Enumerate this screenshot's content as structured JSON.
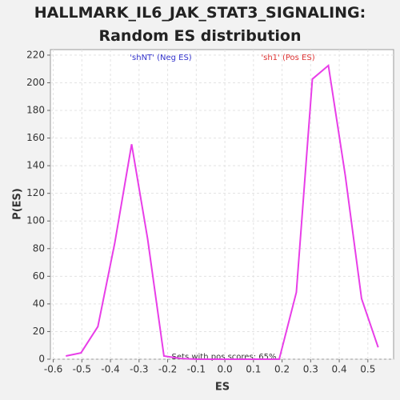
{
  "chart_data": {
    "type": "line",
    "title": "HALLMARK_IL6_JAK_STAT3_SIGNALING: Random ES distribution",
    "xlabel": "ES",
    "ylabel": "P(ES)",
    "annotations": {
      "neg": "'shNT' (Neg ES)",
      "pos": "'sh1' (Pos ES)",
      "note": "Sets with pos scores: 65%"
    },
    "x": [
      -0.556,
      -0.503,
      -0.444,
      -0.385,
      -0.326,
      -0.27,
      -0.213,
      -0.155,
      -0.097,
      -0.04,
      0.018,
      0.076,
      0.134,
      0.19,
      0.25,
      0.306,
      0.362,
      0.421,
      0.478,
      0.536
    ],
    "series": [
      {
        "name": "P(ES)",
        "color": "#e83ee8",
        "values": [
          2.3,
          4.6,
          23.6,
          84,
          155.5,
          87,
          2.3,
          0.5,
          0,
          0,
          0,
          0,
          0,
          0,
          48.4,
          202.7,
          212.5,
          133,
          43.8,
          8.6
        ]
      }
    ],
    "xlim": [
      -0.61,
      0.59
    ],
    "ylim": [
      0,
      224
    ],
    "xticks": [
      -0.6,
      -0.5,
      -0.4,
      -0.3,
      -0.2,
      -0.1,
      {
        "value": 0,
        "label": "0.0"
      },
      0.1,
      0.2,
      0.3,
      0.4,
      0.5
    ],
    "yticks": [
      0,
      20,
      40,
      60,
      80,
      100,
      120,
      140,
      160,
      180,
      200,
      220
    ],
    "grid": true
  }
}
